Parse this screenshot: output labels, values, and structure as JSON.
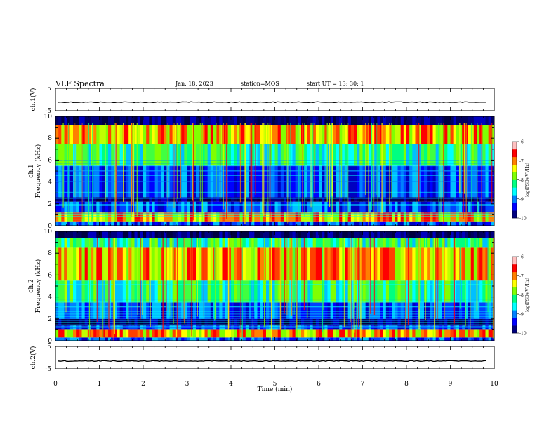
{
  "header": {
    "title": "VLF Spectra",
    "date": "Jan. 18, 2023",
    "station": "station=MOS",
    "start": "start UT =  13: 30: 1"
  },
  "chart_data": [
    {
      "type": "line",
      "panel": "ch1-waveform",
      "ylabel": "ch.1(V)",
      "ylim": [
        -5,
        5
      ],
      "y_ticks": [
        "5",
        "-5"
      ],
      "xlim": [
        0,
        10
      ],
      "trace_level": -1.2,
      "trace_color": "#000000"
    },
    {
      "type": "heatmap",
      "panel": "ch1-spectrogram",
      "ylabel": "ch.1\nFrequency (kHz)",
      "ylim": [
        0,
        10
      ],
      "y_ticks": [
        "0",
        "2",
        "4",
        "6",
        "8",
        "10"
      ],
      "xlim": [
        0,
        10
      ],
      "bands_khz": [
        {
          "from": 0,
          "to": 0.4,
          "level": "low"
        },
        {
          "from": 0.4,
          "to": 1.2,
          "level": "high"
        },
        {
          "from": 1.2,
          "to": 2.2,
          "level": "low"
        },
        {
          "from": 2.2,
          "to": 2.6,
          "level": "very-low"
        },
        {
          "from": 2.6,
          "to": 5.5,
          "level": "low"
        },
        {
          "from": 5.5,
          "to": 7.5,
          "level": "medium"
        },
        {
          "from": 7.5,
          "to": 9.2,
          "level": "high"
        },
        {
          "from": 9.2,
          "to": 10,
          "level": "very-low"
        }
      ],
      "colorbar": {
        "label": "log(PSD)(V²/Hz)",
        "range": [
          -10,
          -6
        ],
        "ticks": [
          "-6",
          "-7",
          "-8",
          "-9",
          "-10"
        ]
      }
    },
    {
      "type": "heatmap",
      "panel": "ch2-spectrogram",
      "ylabel": "ch.2\nFrequency (kHz)",
      "ylim": [
        0,
        10
      ],
      "y_ticks": [
        "0",
        "2",
        "4",
        "6",
        "8",
        "10"
      ],
      "xlim": [
        0,
        10
      ],
      "bands_khz": [
        {
          "from": 0,
          "to": 0.3,
          "level": "low"
        },
        {
          "from": 0.3,
          "to": 1.0,
          "level": "high"
        },
        {
          "from": 1.0,
          "to": 1.4,
          "level": "low"
        },
        {
          "from": 1.4,
          "to": 2.0,
          "level": "very-low"
        },
        {
          "from": 2.0,
          "to": 3.5,
          "level": "low"
        },
        {
          "from": 3.5,
          "to": 5.5,
          "level": "medium"
        },
        {
          "from": 5.5,
          "to": 8.5,
          "level": "high"
        },
        {
          "from": 8.5,
          "to": 9.4,
          "level": "medium"
        },
        {
          "from": 9.4,
          "to": 10,
          "level": "very-low"
        }
      ],
      "colorbar": {
        "label": "log(PSD)(V²/Hz)",
        "range": [
          -10,
          -6
        ],
        "ticks": [
          "-6",
          "-7",
          "-8",
          "-9",
          "-10"
        ]
      }
    },
    {
      "type": "line",
      "panel": "ch2-waveform",
      "ylabel": "ch.2(V)",
      "ylim": [
        -5,
        5
      ],
      "y_ticks": [
        "5",
        "-5"
      ],
      "xlim": [
        0,
        10
      ],
      "trace_level": -1.5,
      "trace_color": "#000000"
    }
  ],
  "x_axis": {
    "label": "Time (min)",
    "ticks": [
      "0",
      "1",
      "2",
      "3",
      "4",
      "5",
      "6",
      "7",
      "8",
      "9",
      "10"
    ],
    "range": [
      0,
      10
    ]
  },
  "colormap": [
    "#000080",
    "#0000ff",
    "#0080ff",
    "#00ffff",
    "#00ff80",
    "#80ff00",
    "#ffff00",
    "#ff8000",
    "#ff0000",
    "#ffc0c0"
  ]
}
